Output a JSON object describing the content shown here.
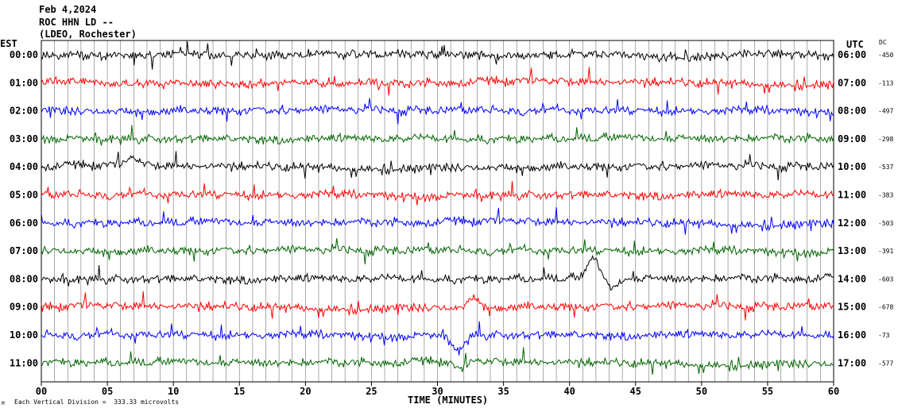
{
  "header": {
    "date": "Feb 4,2024",
    "station": "ROC HHN LD --",
    "network": "(LDEO, Rochester)"
  },
  "labels": {
    "left_tz": "EST",
    "right_tz": "UTC",
    "dc_header": "DC",
    "xlabel": "TIME (MINUTES)",
    "scale_note": "Each Vertical Division =  333.33 microvolts",
    "corner_mark": "M"
  },
  "chart_data": {
    "type": "line",
    "title": "",
    "xlabel": "TIME (MINUTES)",
    "xlim": [
      0,
      60
    ],
    "x_ticks": [
      "00",
      "05",
      "10",
      "15",
      "20",
      "25",
      "30",
      "35",
      "40",
      "45",
      "50",
      "55",
      "60"
    ],
    "grid": "vertical lines every minute",
    "colors_cycle": [
      "#000000",
      "#ff0000",
      "#0000ff",
      "#006400"
    ],
    "rows": [
      {
        "est": "00:00",
        "utc": "06:00",
        "dc": "-450",
        "color": "#000000",
        "events": []
      },
      {
        "est": "01:00",
        "utc": "07:00",
        "dc": "-113",
        "color": "#ff0000",
        "events": []
      },
      {
        "est": "02:00",
        "utc": "08:00",
        "dc": "-497",
        "color": "#0000ff",
        "events": []
      },
      {
        "est": "03:00",
        "utc": "09:00",
        "dc": "-298",
        "color": "#006400",
        "events": []
      },
      {
        "est": "04:00",
        "utc": "10:00",
        "dc": "-537",
        "color": "#000000",
        "events": [
          {
            "minute": 7.0,
            "amp": 1.2
          }
        ]
      },
      {
        "est": "05:00",
        "utc": "11:00",
        "dc": "-383",
        "color": "#ff0000",
        "events": []
      },
      {
        "est": "06:00",
        "utc": "12:00",
        "dc": "-503",
        "color": "#0000ff",
        "events": []
      },
      {
        "est": "07:00",
        "utc": "13:00",
        "dc": "-391",
        "color": "#006400",
        "events": []
      },
      {
        "est": "08:00",
        "utc": "14:00",
        "dc": "-603",
        "color": "#000000",
        "events": [
          {
            "minute": 41.8,
            "amp": 3.0
          },
          {
            "minute": 43.2,
            "amp": -1.5
          }
        ]
      },
      {
        "est": "09:00",
        "utc": "15:00",
        "dc": "-678",
        "color": "#ff0000",
        "events": [
          {
            "minute": 32.8,
            "amp": 1.5
          }
        ]
      },
      {
        "est": "10:00",
        "utc": "16:00",
        "dc": "-73",
        "color": "#0000ff",
        "events": [
          {
            "minute": 31.6,
            "amp": -2.5
          }
        ]
      },
      {
        "est": "11:00",
        "utc": "17:00",
        "dc": "-577",
        "color": "#006400",
        "events": [
          {
            "minute": 31.7,
            "amp": -1.4
          }
        ]
      }
    ]
  }
}
